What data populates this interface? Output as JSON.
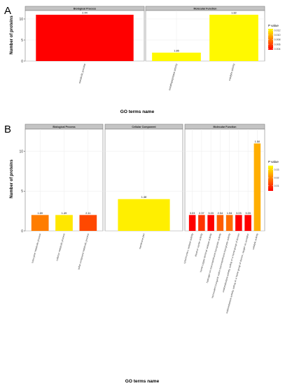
{
  "colors": {
    "strip_fill": "#c4c4c4",
    "panel_border": "#7f7f7f",
    "grid": "#ebebeb",
    "text": "#000000",
    "axis_text": "#333333",
    "gradient_low": "#ff0000",
    "gradient_high": "#ffff00"
  },
  "chart_data": [
    {
      "label": "A",
      "type": "bar",
      "ylabel": "Number of proteins",
      "xlabel": "GO terms name",
      "ylim": [
        0,
        12
      ],
      "yticks": [
        0,
        5,
        10
      ],
      "grid": true,
      "legend_title": "P value",
      "legend_position": "right",
      "legend_ticks": [
        "0.012",
        "0.010",
        "0.008",
        "0.006",
        "0.004"
      ],
      "legend_tick_values": [
        0.012,
        0.01,
        0.008,
        0.006,
        0.004
      ],
      "color_range": [
        0.0036,
        0.0127
      ],
      "facets": [
        {
          "name": "Biological Process",
          "bars": [
            {
              "term": "metabolic process",
              "count": 11,
              "label": "2.44",
              "p": 0.0036
            }
          ]
        },
        {
          "name": "Molecular Function",
          "bars": [
            {
              "term": "metallopeptidase activity",
              "count": 2,
              "label": "1.86",
              "p": 0.0125
            },
            {
              "term": "catalytic activity",
              "count": 11,
              "label": "1.82",
              "p": 0.0125
            }
          ]
        }
      ]
    },
    {
      "label": "B",
      "type": "bar",
      "ylabel": "Number of proteins",
      "xlabel": "GO terms name",
      "ylim": [
        0,
        12.8
      ],
      "yticks": [
        0,
        5,
        10
      ],
      "grid": true,
      "legend_title": "P value",
      "legend_position": "right",
      "legend_ticks": [
        "0.03",
        "0.02",
        "0.01"
      ],
      "legend_tick_values": [
        0.03,
        0.02,
        0.01
      ],
      "color_range": [
        0.0036,
        0.035
      ],
      "facets": [
        {
          "name": "Biological Process",
          "bars": [
            {
              "term": "coenzyme metabolic process",
              "count": 2,
              "label": "1.69",
              "p": 0.019
            },
            {
              "term": "cofactor metabolic process",
              "count": 2,
              "label": "1.49",
              "p": 0.032
            },
            {
              "term": "sulfur compound metabolic process",
              "count": 2,
              "label": "2.11",
              "p": 0.0125
            }
          ]
        },
        {
          "name": "Cellular Component",
          "bars": [
            {
              "term": "membrane part",
              "count": 4,
              "label": "1.48",
              "p": 0.033
            }
          ]
        },
        {
          "name": "Molecular Function",
          "bars": [
            {
              "term": "cytochrome-c oxidase activity",
              "count": 2,
              "label": "3.03",
              "p": 0.0036
            },
            {
              "term": "electron carrier activity",
              "count": 2,
              "label": "2.37",
              "p": 0.01
            },
            {
              "term": "heme-copper terminal oxidase activity",
              "count": 2,
              "label": "3.03",
              "p": 0.0036
            },
            {
              "term": "hydrogen ion transmembrane transporter activity",
              "count": 2,
              "label": "2.04",
              "p": 0.015
            },
            {
              "term": "monovalent inorganic cation transmembrane transporter activity",
              "count": 2,
              "label": "1.94",
              "p": 0.017
            },
            {
              "term": "oxidoreductase activity, acting on a heme group of donors",
              "count": 2,
              "label": "3.03",
              "p": 0.0036
            },
            {
              "term": "oxidoreductase activity, acting on a heme group of donors, oxygen as acceptor",
              "count": 2,
              "label": "3.03",
              "p": 0.0036
            },
            {
              "term": "catalytic activity",
              "count": 11,
              "label": "1.50",
              "p": 0.025
            }
          ]
        }
      ]
    }
  ]
}
